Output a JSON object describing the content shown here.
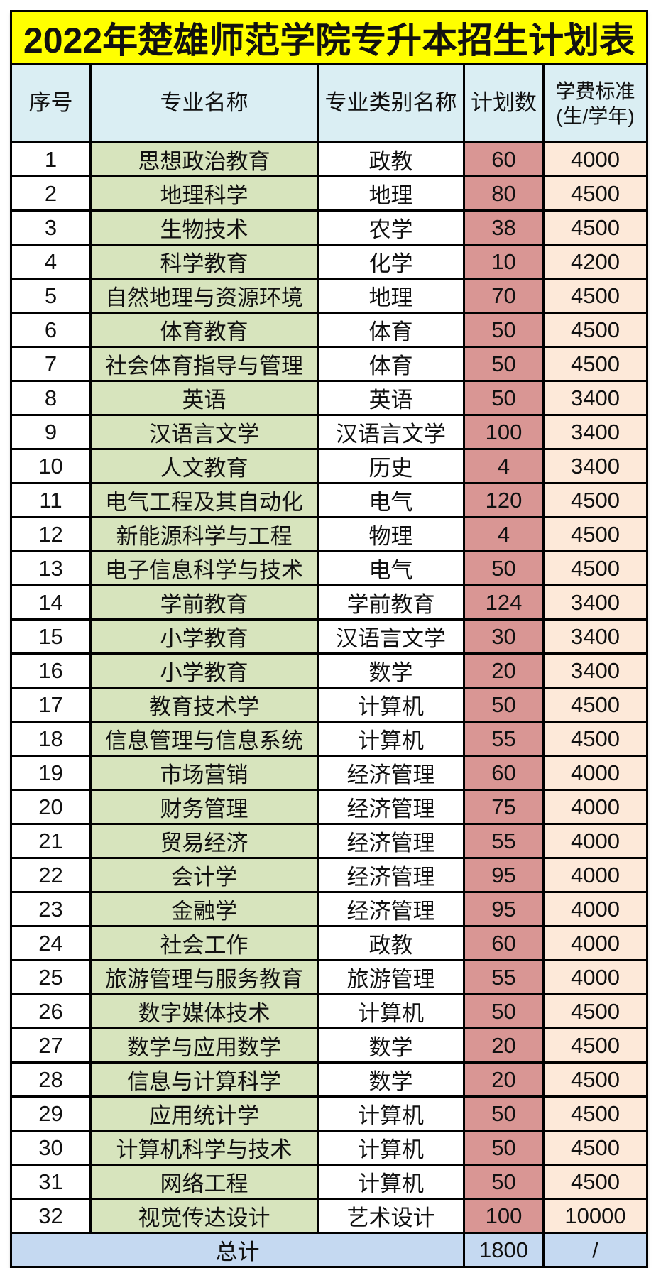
{
  "title": "2022年楚雄师范学院专升本招生计划表",
  "colors": {
    "title_bg": "#FFFF00",
    "header_bg": "#DAEEF3",
    "major_bg": "#D7E4BD",
    "plan_bg": "#D99694",
    "tuition_bg": "#FDE9D9",
    "total_bg": "#C5D9F1",
    "border": "#000000",
    "text": "#111111"
  },
  "table": {
    "headers": [
      "序号",
      "专业名称",
      "专业类别名称",
      "计划数",
      "学费标准\n(生/学年)"
    ],
    "rows": [
      {
        "no": 1,
        "major": "思想政治教育",
        "category": "政教",
        "plan": 60,
        "tuition": 4000
      },
      {
        "no": 2,
        "major": "地理科学",
        "category": "地理",
        "plan": 80,
        "tuition": 4500
      },
      {
        "no": 3,
        "major": "生物技术",
        "category": "农学",
        "plan": 38,
        "tuition": 4500
      },
      {
        "no": 4,
        "major": "科学教育",
        "category": "化学",
        "plan": 10,
        "tuition": 4200
      },
      {
        "no": 5,
        "major": "自然地理与资源环境",
        "category": "地理",
        "plan": 70,
        "tuition": 4500
      },
      {
        "no": 6,
        "major": "体育教育",
        "category": "体育",
        "plan": 50,
        "tuition": 4500
      },
      {
        "no": 7,
        "major": "社会体育指导与管理",
        "category": "体育",
        "plan": 50,
        "tuition": 4500
      },
      {
        "no": 8,
        "major": "英语",
        "category": "英语",
        "plan": 50,
        "tuition": 3400
      },
      {
        "no": 9,
        "major": "汉语言文学",
        "category": "汉语言文学",
        "plan": 100,
        "tuition": 3400
      },
      {
        "no": 10,
        "major": "人文教育",
        "category": "历史",
        "plan": 4,
        "tuition": 3400
      },
      {
        "no": 11,
        "major": "电气工程及其自动化",
        "category": "电气",
        "plan": 120,
        "tuition": 4500
      },
      {
        "no": 12,
        "major": "新能源科学与工程",
        "category": "物理",
        "plan": 4,
        "tuition": 4500
      },
      {
        "no": 13,
        "major": "电子信息科学与技术",
        "category": "电气",
        "plan": 50,
        "tuition": 4500
      },
      {
        "no": 14,
        "major": "学前教育",
        "category": "学前教育",
        "plan": 124,
        "tuition": 3400
      },
      {
        "no": 15,
        "major": "小学教育",
        "category": "汉语言文学",
        "plan": 30,
        "tuition": 3400
      },
      {
        "no": 16,
        "major": "小学教育",
        "category": "数学",
        "plan": 20,
        "tuition": 3400
      },
      {
        "no": 17,
        "major": "教育技术学",
        "category": "计算机",
        "plan": 50,
        "tuition": 4500
      },
      {
        "no": 18,
        "major": "信息管理与信息系统",
        "category": "计算机",
        "plan": 55,
        "tuition": 4500
      },
      {
        "no": 19,
        "major": "市场营销",
        "category": "经济管理",
        "plan": 60,
        "tuition": 4000
      },
      {
        "no": 20,
        "major": "财务管理",
        "category": "经济管理",
        "plan": 75,
        "tuition": 4000
      },
      {
        "no": 21,
        "major": "贸易经济",
        "category": "经济管理",
        "plan": 55,
        "tuition": 4000
      },
      {
        "no": 22,
        "major": "会计学",
        "category": "经济管理",
        "plan": 95,
        "tuition": 4000
      },
      {
        "no": 23,
        "major": "金融学",
        "category": "经济管理",
        "plan": 95,
        "tuition": 4000
      },
      {
        "no": 24,
        "major": "社会工作",
        "category": "政教",
        "plan": 60,
        "tuition": 4000
      },
      {
        "no": 25,
        "major": "旅游管理与服务教育",
        "category": "旅游管理",
        "plan": 55,
        "tuition": 4000
      },
      {
        "no": 26,
        "major": "数字媒体技术",
        "category": "计算机",
        "plan": 50,
        "tuition": 4500
      },
      {
        "no": 27,
        "major": "数学与应用数学",
        "category": "数学",
        "plan": 20,
        "tuition": 4500
      },
      {
        "no": 28,
        "major": "信息与计算科学",
        "category": "数学",
        "plan": 20,
        "tuition": 4500
      },
      {
        "no": 29,
        "major": "应用统计学",
        "category": "计算机",
        "plan": 50,
        "tuition": 4500
      },
      {
        "no": 30,
        "major": "计算机科学与技术",
        "category": "计算机",
        "plan": 50,
        "tuition": 4500
      },
      {
        "no": 31,
        "major": "网络工程",
        "category": "计算机",
        "plan": 50,
        "tuition": 4500
      },
      {
        "no": 32,
        "major": "视觉传达设计",
        "category": "艺术设计",
        "plan": 100,
        "tuition": 10000
      }
    ],
    "total": {
      "label": "总计",
      "plan": 1800,
      "tuition": "/"
    }
  }
}
